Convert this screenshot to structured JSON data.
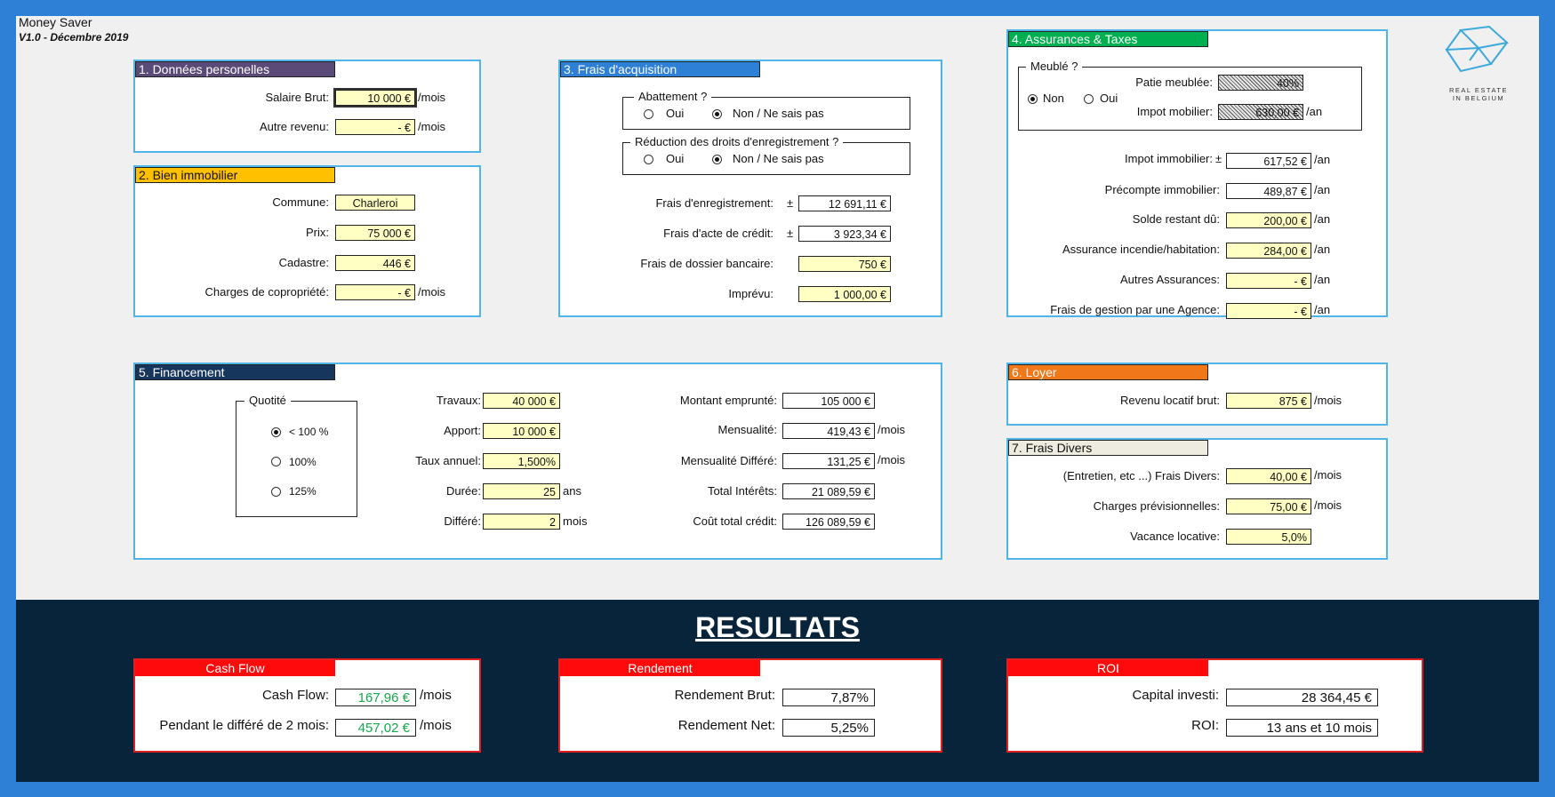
{
  "app": {
    "title": "Money Saver",
    "version": "V1.0 - Décembre 2019"
  },
  "logo": {
    "line1": "REAL ESTATE",
    "line2": "IN BELGIUM"
  },
  "colors": {
    "border": "#4fb4e8",
    "input_bg": "#ffffc4",
    "results_bg": "#08243a",
    "result_red": "#ff0a0a",
    "green": "#14a84a",
    "sheet_border": "#2e7fd6"
  },
  "p1": {
    "title": "1. Données personelles",
    "title_color": "#5a4a78",
    "salaire_label": "Salaire Brut:",
    "salaire_value": "10 000 €",
    "salaire_unit": "/mois",
    "autre_label": "Autre revenu:",
    "autre_value": "-     €",
    "autre_unit": "/mois"
  },
  "p2": {
    "title": "2. Bien immobilier",
    "title_color": "#ffc000",
    "commune_label": "Commune:",
    "commune_value": "Charleroi",
    "prix_label": "Prix:",
    "prix_value": "75 000 €",
    "cadastre_label": "Cadastre:",
    "cadastre_value": "446 €",
    "charges_label": "Charges de copropriété:",
    "charges_value": "-     €",
    "charges_unit": "/mois"
  },
  "p3": {
    "title": "3. Frais d'acquisition",
    "title_color": "#2e7fd6",
    "abattement_legend": "Abattement ?",
    "abattement_oui": "Oui",
    "abattement_non": "Non / Ne sais pas",
    "reduction_legend": "Réduction des droits d'enregistrement ?",
    "reduction_oui": "Oui",
    "reduction_non": "Non / Ne sais pas",
    "enreg_label": "Frais d'enregistrement:",
    "enreg_value": "12 691,11 €",
    "acte_label": "Frais d'acte de crédit:",
    "acte_value": "3 923,34 €",
    "dossier_label": "Frais de dossier bancaire:",
    "dossier_value": "750 €",
    "imprevu_label": "Imprévu:",
    "imprevu_value": "1 000,00 €",
    "pm": "±"
  },
  "p4": {
    "title": "4. Assurances & Taxes",
    "title_color": "#00b050",
    "meuble_legend": "Meublé ?",
    "meuble_non": "Non",
    "meuble_oui": "Oui",
    "patie_label": "Patie meublée:",
    "patie_value": "40%",
    "impot_mob_label": "Impot mobilier:",
    "impot_mob_value": "630,00 €",
    "impot_mob_unit": "/an",
    "impot_imm_label": "Impot immobilier:",
    "impot_imm_value": "617,52 €",
    "impot_imm_unit": "/an",
    "precompte_label": "Précompte immobilier:",
    "precompte_value": "489,87 €",
    "precompte_unit": "/an",
    "solde_label": "Solde restant dû:",
    "solde_value": "200,00 €",
    "solde_unit": "/an",
    "incendie_label": "Assurance incendie/habitation:",
    "incendie_value": "284,00 €",
    "incendie_unit": "/an",
    "autres_label": "Autres Assurances:",
    "autres_value": "-     €",
    "autres_unit": "/an",
    "gestion_label": "Frais de gestion par une Agence:",
    "gestion_value": "-     €",
    "gestion_unit": "/an",
    "pm": "±"
  },
  "p5": {
    "title": "5. Financement",
    "title_color": "#17365d",
    "quotite_legend": "Quotité",
    "q1": "< 100 %",
    "q2": "100%",
    "q3": "125%",
    "travaux_label": "Travaux:",
    "travaux_value": "40 000 €",
    "apport_label": "Apport:",
    "apport_value": "10 000 €",
    "taux_label": "Taux annuel:",
    "taux_value": "1,500%",
    "duree_label": "Durée:",
    "duree_value": "25",
    "duree_unit": "ans",
    "differe_label": "Différé:",
    "differe_value": "2",
    "differe_unit": "mois",
    "montant_label": "Montant emprunté:",
    "montant_value": "105 000 €",
    "mensualite_label": "Mensualité:",
    "mensualite_value": "419,43 €",
    "mensualite_unit": "/mois",
    "mens_diff_label": "Mensualité Différé:",
    "mens_diff_value": "131,25 €",
    "mens_diff_unit": "/mois",
    "interets_label": "Total Intérêts:",
    "interets_value": "21 089,59 €",
    "cout_label": "Coût total crédit:",
    "cout_value": "126 089,59 €"
  },
  "p6": {
    "title": "6. Loyer",
    "title_color": "#f07818",
    "revenu_label": "Revenu locatif brut:",
    "revenu_value": "875 €",
    "revenu_unit": "/mois"
  },
  "p7": {
    "title": "7. Frais Divers",
    "title_color": "#eeece1",
    "divers_label": "(Entretien, etc ...) Frais Divers:",
    "divers_value": "40,00 €",
    "divers_unit": "/mois",
    "prev_label": "Charges prévisionnelles:",
    "prev_value": "75,00 €",
    "prev_unit": "/mois",
    "vacance_label": "Vacance locative:",
    "vacance_value": "5,0%"
  },
  "results": {
    "heading": "RESULTATS",
    "cashflow": {
      "title": "Cash Flow",
      "cf_label": "Cash Flow:",
      "cf_value": "167,96 €",
      "cf_unit": "/mois",
      "diff_label": "Pendant le différé de 2 mois:",
      "diff_value": "457,02 €",
      "diff_unit": "/mois"
    },
    "rendement": {
      "title": "Rendement",
      "brut_label": "Rendement Brut:",
      "brut_value": "7,87%",
      "net_label": "Rendement Net:",
      "net_value": "5,25%"
    },
    "roi": {
      "title": "ROI",
      "capital_label": "Capital investi:",
      "capital_value": "28 364,45 €",
      "roi_label": "ROI:",
      "roi_value": "13 ans et 10 mois"
    }
  }
}
